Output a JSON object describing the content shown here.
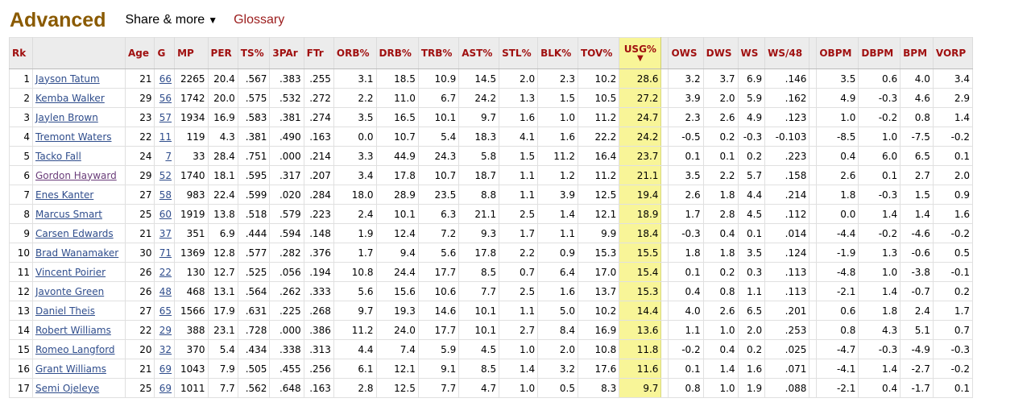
{
  "header": {
    "title": "Advanced",
    "share_label": "Share & more",
    "share_caret": "▼",
    "glossary_label": "Glossary"
  },
  "table": {
    "columns": {
      "rk": "Rk",
      "player": "",
      "age": "Age",
      "g": "G",
      "mp": "MP",
      "per": "PER",
      "ts": "TS%",
      "tpar": "3PAr",
      "ftr": "FTr",
      "orb": "ORB%",
      "drb": "DRB%",
      "trb": "TRB%",
      "ast": "AST%",
      "stl": "STL%",
      "blk": "BLK%",
      "tov": "TOV%",
      "usg": "USG%",
      "usg_sort_arrow": "▼",
      "ows": "OWS",
      "dws": "DWS",
      "ws": "WS",
      "ws48": "WS/48",
      "obpm": "OBPM",
      "dbpm": "DBPM",
      "bpm": "BPM",
      "vorp": "VORP"
    },
    "visited_link_color": "#6a3d7a",
    "link_color": "#2f4d8c",
    "highlight_color": "#f8f598",
    "rows": [
      {
        "rk": "1",
        "player": "Jayson Tatum",
        "age": "21",
        "g": "66",
        "mp": "2265",
        "per": "20.4",
        "ts": ".567",
        "tpar": ".383",
        "ftr": ".255",
        "orb": "3.1",
        "drb": "18.5",
        "trb": "10.9",
        "ast": "14.5",
        "stl": "2.0",
        "blk": "2.3",
        "tov": "10.2",
        "usg": "28.6",
        "ows": "3.2",
        "dws": "3.7",
        "ws": "6.9",
        "ws48": ".146",
        "obpm": "3.5",
        "dbpm": "0.6",
        "bpm": "4.0",
        "vorp": "3.4"
      },
      {
        "rk": "2",
        "player": "Kemba Walker",
        "age": "29",
        "g": "56",
        "mp": "1742",
        "per": "20.0",
        "ts": ".575",
        "tpar": ".532",
        "ftr": ".272",
        "orb": "2.2",
        "drb": "11.0",
        "trb": "6.7",
        "ast": "24.2",
        "stl": "1.3",
        "blk": "1.5",
        "tov": "10.5",
        "usg": "27.2",
        "ows": "3.9",
        "dws": "2.0",
        "ws": "5.9",
        "ws48": ".162",
        "obpm": "4.9",
        "dbpm": "-0.3",
        "bpm": "4.6",
        "vorp": "2.9"
      },
      {
        "rk": "3",
        "player": "Jaylen Brown",
        "age": "23",
        "g": "57",
        "mp": "1934",
        "per": "16.9",
        "ts": ".583",
        "tpar": ".381",
        "ftr": ".274",
        "orb": "3.5",
        "drb": "16.5",
        "trb": "10.1",
        "ast": "9.7",
        "stl": "1.6",
        "blk": "1.0",
        "tov": "11.2",
        "usg": "24.7",
        "ows": "2.3",
        "dws": "2.6",
        "ws": "4.9",
        "ws48": ".123",
        "obpm": "1.0",
        "dbpm": "-0.2",
        "bpm": "0.8",
        "vorp": "1.4"
      },
      {
        "rk": "4",
        "player": "Tremont Waters",
        "age": "22",
        "g": "11",
        "mp": "119",
        "per": "4.3",
        "ts": ".381",
        "tpar": ".490",
        "ftr": ".163",
        "orb": "0.0",
        "drb": "10.7",
        "trb": "5.4",
        "ast": "18.3",
        "stl": "4.1",
        "blk": "1.6",
        "tov": "22.2",
        "usg": "24.2",
        "ows": "-0.5",
        "dws": "0.2",
        "ws": "-0.3",
        "ws48": "-0.103",
        "obpm": "-8.5",
        "dbpm": "1.0",
        "bpm": "-7.5",
        "vorp": "-0.2"
      },
      {
        "rk": "5",
        "player": "Tacko Fall",
        "age": "24",
        "g": "7",
        "mp": "33",
        "per": "28.4",
        "ts": ".751",
        "tpar": ".000",
        "ftr": ".214",
        "orb": "3.3",
        "drb": "44.9",
        "trb": "24.3",
        "ast": "5.8",
        "stl": "1.5",
        "blk": "11.2",
        "tov": "16.4",
        "usg": "23.7",
        "ows": "0.1",
        "dws": "0.1",
        "ws": "0.2",
        "ws48": ".223",
        "obpm": "0.4",
        "dbpm": "6.0",
        "bpm": "6.5",
        "vorp": "0.1"
      },
      {
        "rk": "6",
        "player": "Gordon Hayward",
        "age": "29",
        "g": "52",
        "mp": "1740",
        "per": "18.1",
        "ts": ".595",
        "tpar": ".317",
        "ftr": ".207",
        "orb": "3.4",
        "drb": "17.8",
        "trb": "10.7",
        "ast": "18.7",
        "stl": "1.1",
        "blk": "1.2",
        "tov": "11.2",
        "usg": "21.1",
        "ows": "3.5",
        "dws": "2.2",
        "ws": "5.7",
        "ws48": ".158",
        "obpm": "2.6",
        "dbpm": "0.1",
        "bpm": "2.7",
        "vorp": "2.0",
        "visited": true
      },
      {
        "rk": "7",
        "player": "Enes Kanter",
        "age": "27",
        "g": "58",
        "mp": "983",
        "per": "22.4",
        "ts": ".599",
        "tpar": ".020",
        "ftr": ".284",
        "orb": "18.0",
        "drb": "28.9",
        "trb": "23.5",
        "ast": "8.8",
        "stl": "1.1",
        "blk": "3.9",
        "tov": "12.5",
        "usg": "19.4",
        "ows": "2.6",
        "dws": "1.8",
        "ws": "4.4",
        "ws48": ".214",
        "obpm": "1.8",
        "dbpm": "-0.3",
        "bpm": "1.5",
        "vorp": "0.9"
      },
      {
        "rk": "8",
        "player": "Marcus Smart",
        "age": "25",
        "g": "60",
        "mp": "1919",
        "per": "13.8",
        "ts": ".518",
        "tpar": ".579",
        "ftr": ".223",
        "orb": "2.4",
        "drb": "10.1",
        "trb": "6.3",
        "ast": "21.1",
        "stl": "2.5",
        "blk": "1.4",
        "tov": "12.1",
        "usg": "18.9",
        "ows": "1.7",
        "dws": "2.8",
        "ws": "4.5",
        "ws48": ".112",
        "obpm": "0.0",
        "dbpm": "1.4",
        "bpm": "1.4",
        "vorp": "1.6"
      },
      {
        "rk": "9",
        "player": "Carsen Edwards",
        "age": "21",
        "g": "37",
        "mp": "351",
        "per": "6.9",
        "ts": ".444",
        "tpar": ".594",
        "ftr": ".148",
        "orb": "1.9",
        "drb": "12.4",
        "trb": "7.2",
        "ast": "9.3",
        "stl": "1.7",
        "blk": "1.1",
        "tov": "9.9",
        "usg": "18.4",
        "ows": "-0.3",
        "dws": "0.4",
        "ws": "0.1",
        "ws48": ".014",
        "obpm": "-4.4",
        "dbpm": "-0.2",
        "bpm": "-4.6",
        "vorp": "-0.2"
      },
      {
        "rk": "10",
        "player": "Brad Wanamaker",
        "age": "30",
        "g": "71",
        "mp": "1369",
        "per": "12.8",
        "ts": ".577",
        "tpar": ".282",
        "ftr": ".376",
        "orb": "1.7",
        "drb": "9.4",
        "trb": "5.6",
        "ast": "17.8",
        "stl": "2.2",
        "blk": "0.9",
        "tov": "15.3",
        "usg": "15.5",
        "ows": "1.8",
        "dws": "1.8",
        "ws": "3.5",
        "ws48": ".124",
        "obpm": "-1.9",
        "dbpm": "1.3",
        "bpm": "-0.6",
        "vorp": "0.5"
      },
      {
        "rk": "11",
        "player": "Vincent Poirier",
        "age": "26",
        "g": "22",
        "mp": "130",
        "per": "12.7",
        "ts": ".525",
        "tpar": ".056",
        "ftr": ".194",
        "orb": "10.8",
        "drb": "24.4",
        "trb": "17.7",
        "ast": "8.5",
        "stl": "0.7",
        "blk": "6.4",
        "tov": "17.0",
        "usg": "15.4",
        "ows": "0.1",
        "dws": "0.2",
        "ws": "0.3",
        "ws48": ".113",
        "obpm": "-4.8",
        "dbpm": "1.0",
        "bpm": "-3.8",
        "vorp": "-0.1"
      },
      {
        "rk": "12",
        "player": "Javonte Green",
        "age": "26",
        "g": "48",
        "mp": "468",
        "per": "13.1",
        "ts": ".564",
        "tpar": ".262",
        "ftr": ".333",
        "orb": "5.6",
        "drb": "15.6",
        "trb": "10.6",
        "ast": "7.7",
        "stl": "2.5",
        "blk": "1.6",
        "tov": "13.7",
        "usg": "15.3",
        "ows": "0.4",
        "dws": "0.8",
        "ws": "1.1",
        "ws48": ".113",
        "obpm": "-2.1",
        "dbpm": "1.4",
        "bpm": "-0.7",
        "vorp": "0.2"
      },
      {
        "rk": "13",
        "player": "Daniel Theis",
        "age": "27",
        "g": "65",
        "mp": "1566",
        "per": "17.9",
        "ts": ".631",
        "tpar": ".225",
        "ftr": ".268",
        "orb": "9.7",
        "drb": "19.3",
        "trb": "14.6",
        "ast": "10.1",
        "stl": "1.1",
        "blk": "5.0",
        "tov": "10.2",
        "usg": "14.4",
        "ows": "4.0",
        "dws": "2.6",
        "ws": "6.5",
        "ws48": ".201",
        "obpm": "0.6",
        "dbpm": "1.8",
        "bpm": "2.4",
        "vorp": "1.7"
      },
      {
        "rk": "14",
        "player": "Robert Williams",
        "age": "22",
        "g": "29",
        "mp": "388",
        "per": "23.1",
        "ts": ".728",
        "tpar": ".000",
        "ftr": ".386",
        "orb": "11.2",
        "drb": "24.0",
        "trb": "17.7",
        "ast": "10.1",
        "stl": "2.7",
        "blk": "8.4",
        "tov": "16.9",
        "usg": "13.6",
        "ows": "1.1",
        "dws": "1.0",
        "ws": "2.0",
        "ws48": ".253",
        "obpm": "0.8",
        "dbpm": "4.3",
        "bpm": "5.1",
        "vorp": "0.7"
      },
      {
        "rk": "15",
        "player": "Romeo Langford",
        "age": "20",
        "g": "32",
        "mp": "370",
        "per": "5.4",
        "ts": ".434",
        "tpar": ".338",
        "ftr": ".313",
        "orb": "4.4",
        "drb": "7.4",
        "trb": "5.9",
        "ast": "4.5",
        "stl": "1.0",
        "blk": "2.0",
        "tov": "10.8",
        "usg": "11.8",
        "ows": "-0.2",
        "dws": "0.4",
        "ws": "0.2",
        "ws48": ".025",
        "obpm": "-4.7",
        "dbpm": "-0.3",
        "bpm": "-4.9",
        "vorp": "-0.3"
      },
      {
        "rk": "16",
        "player": "Grant Williams",
        "age": "21",
        "g": "69",
        "mp": "1043",
        "per": "7.9",
        "ts": ".505",
        "tpar": ".455",
        "ftr": ".256",
        "orb": "6.1",
        "drb": "12.1",
        "trb": "9.1",
        "ast": "8.5",
        "stl": "1.4",
        "blk": "3.2",
        "tov": "17.6",
        "usg": "11.6",
        "ows": "0.1",
        "dws": "1.4",
        "ws": "1.6",
        "ws48": ".071",
        "obpm": "-4.1",
        "dbpm": "1.4",
        "bpm": "-2.7",
        "vorp": "-0.2"
      },
      {
        "rk": "17",
        "player": "Semi Ojeleye",
        "age": "25",
        "g": "69",
        "mp": "1011",
        "per": "7.7",
        "ts": ".562",
        "tpar": ".648",
        "ftr": ".163",
        "orb": "2.8",
        "drb": "12.5",
        "trb": "7.7",
        "ast": "4.7",
        "stl": "1.0",
        "blk": "0.5",
        "tov": "8.3",
        "usg": "9.7",
        "ows": "0.8",
        "dws": "1.0",
        "ws": "1.9",
        "ws48": ".088",
        "obpm": "-2.1",
        "dbpm": "0.4",
        "bpm": "-1.7",
        "vorp": "0.1"
      }
    ]
  }
}
